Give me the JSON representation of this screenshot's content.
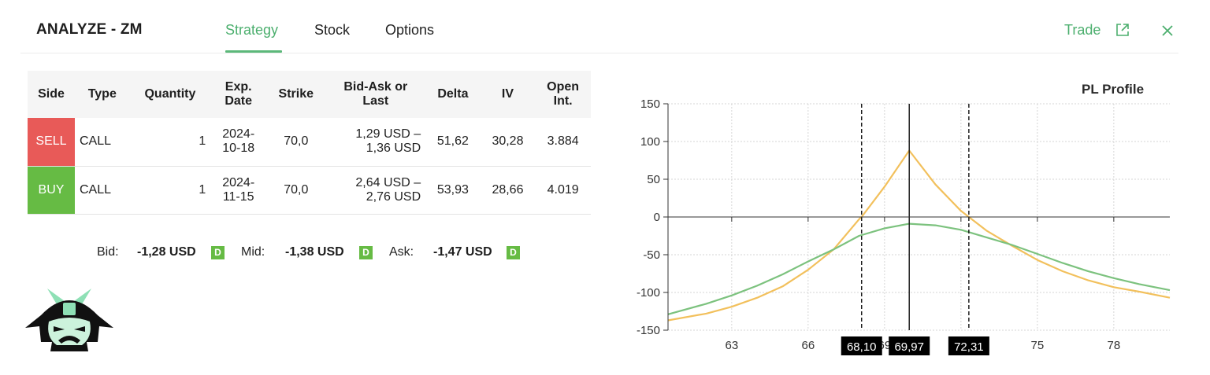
{
  "header": {
    "title": "ANALYZE - ZM",
    "tabs": [
      {
        "label": "Strategy",
        "active": true
      },
      {
        "label": "Stock",
        "active": false
      },
      {
        "label": "Options",
        "active": false
      }
    ],
    "trade_label": "Trade",
    "accent_color": "#4caf6e"
  },
  "table": {
    "headers": [
      "Side",
      "Type",
      "Quantity",
      "Exp.\nDate",
      "Strike",
      "Bid-Ask or\nLast",
      "Delta",
      "IV",
      "Open\nInt."
    ],
    "rows": [
      {
        "side": "SELL",
        "type": "CALL",
        "quantity": "1",
        "exp_date": "2024-\n10-18",
        "strike": "70,0",
        "bid_ask": "1,29 USD –\n1,36 USD",
        "delta": "51,62",
        "iv": "30,28",
        "open_int": "3.884",
        "side_color": "#e85a58"
      },
      {
        "side": "BUY",
        "type": "CALL",
        "quantity": "1",
        "exp_date": "2024-\n11-15",
        "strike": "70,0",
        "bid_ask": "2,64 USD –\n2,76 USD",
        "delta": "53,93",
        "iv": "28,66",
        "open_int": "4.019",
        "side_color": "#66bb44"
      }
    ]
  },
  "quotes": {
    "bid_label": "Bid:",
    "bid_value": "-1,28 USD",
    "mid_label": "Mid:",
    "mid_value": "-1,38 USD",
    "ask_label": "Ask:",
    "ask_value": "-1,47 USD",
    "badge": "D"
  },
  "chart_data": {
    "type": "line",
    "title": "PL Profile",
    "xlim": [
      60.5,
      80.2
    ],
    "ylim": [
      -150,
      150
    ],
    "x_ticks": [
      63,
      66,
      69,
      72,
      75,
      78
    ],
    "y_ticks": [
      150,
      100,
      50,
      0,
      -50,
      -100,
      -150
    ],
    "grid": true,
    "series": [
      {
        "color": "#f2c05c",
        "x": [
          60.5,
          62,
          63,
          64,
          65,
          66,
          67,
          68,
          68.1,
          69,
          69.97,
          71,
          72,
          72.31,
          73,
          74,
          75,
          76,
          77,
          78,
          79,
          80.2
        ],
        "y": [
          -137,
          -128,
          -119,
          -107,
          -92,
          -70,
          -43,
          -3,
          0,
          40,
          88,
          43,
          8,
          0,
          -18,
          -38,
          -57,
          -72,
          -84,
          -93,
          -99,
          -107
        ]
      },
      {
        "color": "#7cc27e",
        "x": [
          60.5,
          62,
          63,
          64,
          65,
          66,
          67,
          68,
          69,
          69.97,
          71,
          72,
          73,
          74,
          75,
          76,
          77,
          78,
          79,
          80.2
        ],
        "y": [
          -129,
          -115,
          -104,
          -91,
          -76,
          -59,
          -43,
          -25,
          -15,
          -9,
          -11,
          -17,
          -27,
          -37,
          -49,
          -61,
          -72,
          -81,
          -89,
          -97
        ]
      }
    ],
    "vertical_lines": [
      {
        "x": 68.1,
        "style": "dashed",
        "label": "68,10"
      },
      {
        "x": 69.97,
        "style": "solid",
        "label": "69,97"
      },
      {
        "x": 72.31,
        "style": "dashed",
        "label": "72,31"
      }
    ]
  }
}
